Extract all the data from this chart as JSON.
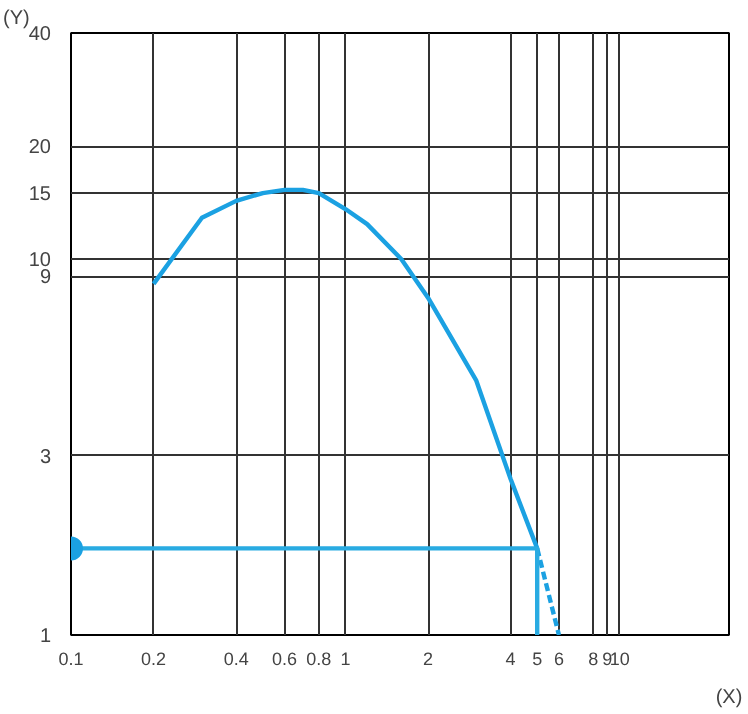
{
  "chart_data": {
    "type": "line",
    "xlabel": "(X)",
    "ylabel": "(Y)",
    "log": "xy",
    "grid": true,
    "xlim": [
      0.1,
      25
    ],
    "ylim": [
      1,
      40
    ],
    "xticks": [
      0.1,
      0.2,
      0.4,
      0.6,
      0.8,
      1,
      2,
      4,
      5,
      6,
      8,
      9,
      10
    ],
    "yticks": [
      1,
      3,
      9,
      10,
      15,
      20,
      40
    ],
    "series": [
      {
        "color": "#1ba1e2",
        "x": [
          0.2,
          0.3,
          0.4,
          0.5,
          0.6,
          0.7,
          0.8,
          1,
          1.2,
          1.6,
          2,
          3,
          4,
          5
        ],
        "values": [
          8.6,
          12.9,
          14.3,
          15,
          15.3,
          15.3,
          15,
          13.6,
          12.4,
          10,
          7.9,
          4.75,
          2.6,
          1.7
        ]
      },
      {
        "color": "#1ba1e2",
        "line_style": "dashed",
        "x": [
          5,
          6
        ],
        "values": [
          1.7,
          1
        ]
      },
      {
        "color": "#29abe2",
        "x": [
          0.1,
          5,
          5
        ],
        "values": [
          1.7,
          1.7,
          1
        ]
      },
      {
        "type": "scatter",
        "marker": "circle",
        "color": "#1ba1e2",
        "x": [
          0.1
        ],
        "values": [
          1.7
        ]
      }
    ]
  }
}
